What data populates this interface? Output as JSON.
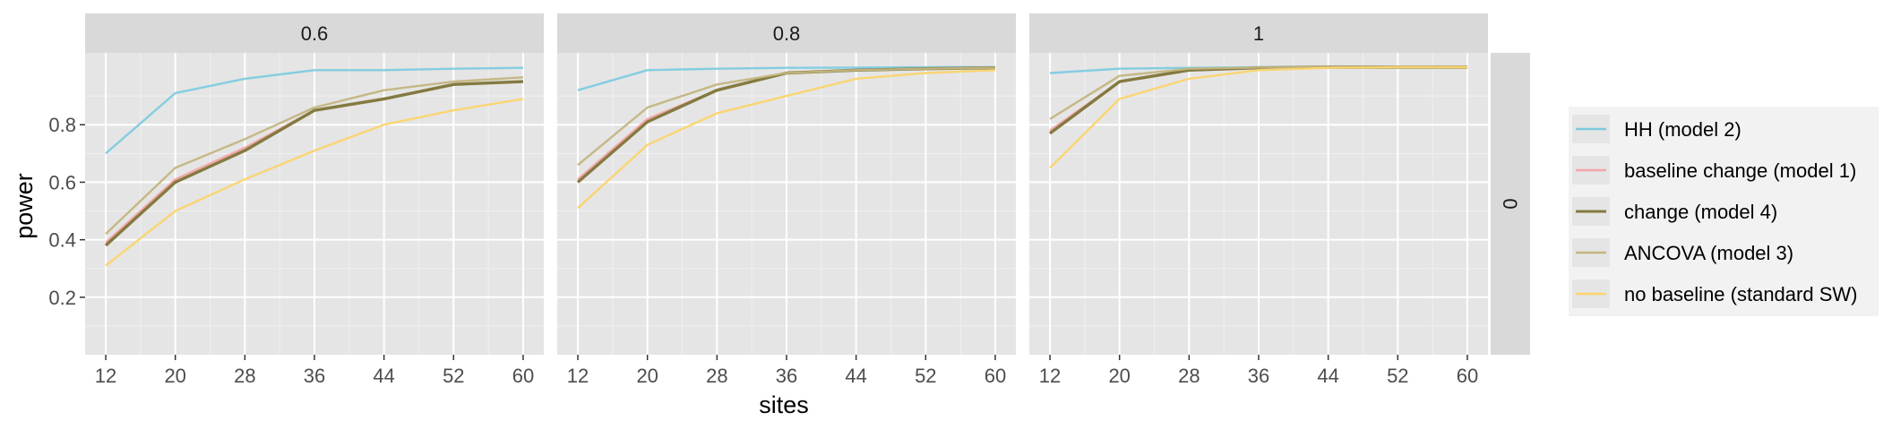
{
  "chart_data": {
    "type": "line",
    "xlabel": "sites",
    "ylabel": "power",
    "x": [
      12,
      20,
      28,
      36,
      44,
      52,
      60
    ],
    "x_ticks": [
      "12",
      "20",
      "28",
      "36",
      "44",
      "52",
      "60"
    ],
    "y_ticks": [
      "0.2",
      "0.4",
      "0.6",
      "0.8"
    ],
    "ylim": [
      0.0,
      1.05
    ],
    "grid": true,
    "legend_position": "right",
    "row_facet_label": "0",
    "series_styles": [
      {
        "name": "HH (model 2)",
        "color": "#7ecbe0"
      },
      {
        "name": "baseline change (model 1)",
        "color": "#f4a3a8"
      },
      {
        "name": "change (model 4)",
        "color": "#847a3f"
      },
      {
        "name": "ANCOVA (model 3)",
        "color": "#c3b57f"
      },
      {
        "name": "no baseline (standard SW)",
        "color": "#fbd46d"
      }
    ],
    "panels": [
      {
        "label": "0.6",
        "series": [
          {
            "name": "HH (model 2)",
            "values": [
              0.7,
              0.91,
              0.96,
              0.99,
              0.99,
              0.995,
              0.998
            ]
          },
          {
            "name": "baseline change (model 1)",
            "values": [
              0.39,
              0.61,
              0.72,
              0.85,
              0.89,
              0.94,
              0.95
            ]
          },
          {
            "name": "change (model 4)",
            "values": [
              0.38,
              0.6,
              0.71,
              0.85,
              0.89,
              0.94,
              0.95
            ]
          },
          {
            "name": "ANCOVA (model 3)",
            "values": [
              0.42,
              0.65,
              0.75,
              0.86,
              0.92,
              0.95,
              0.965
            ]
          },
          {
            "name": "no baseline (standard SW)",
            "values": [
              0.31,
              0.5,
              0.61,
              0.71,
              0.8,
              0.85,
              0.89
            ]
          }
        ]
      },
      {
        "label": "0.8",
        "series": [
          {
            "name": "HH (model 2)",
            "values": [
              0.92,
              0.99,
              0.995,
              0.998,
              0.999,
              1.0,
              1.0
            ]
          },
          {
            "name": "baseline change (model 1)",
            "values": [
              0.61,
              0.82,
              0.92,
              0.98,
              0.99,
              0.995,
              0.998
            ]
          },
          {
            "name": "change (model 4)",
            "values": [
              0.6,
              0.81,
              0.92,
              0.98,
              0.99,
              0.995,
              0.998
            ]
          },
          {
            "name": "ANCOVA (model 3)",
            "values": [
              0.66,
              0.86,
              0.94,
              0.98,
              0.99,
              0.995,
              0.998
            ]
          },
          {
            "name": "no baseline (standard SW)",
            "values": [
              0.51,
              0.73,
              0.84,
              0.9,
              0.96,
              0.98,
              0.99
            ]
          }
        ]
      },
      {
        "label": "1",
        "series": [
          {
            "name": "HH (model 2)",
            "values": [
              0.98,
              0.995,
              0.998,
              1.0,
              1.0,
              1.0,
              1.0
            ]
          },
          {
            "name": "baseline change (model 1)",
            "values": [
              0.78,
              0.95,
              0.99,
              0.998,
              1.0,
              1.0,
              1.0
            ]
          },
          {
            "name": "change (model 4)",
            "values": [
              0.77,
              0.95,
              0.99,
              0.998,
              1.0,
              1.0,
              1.0
            ]
          },
          {
            "name": "ANCOVA (model 3)",
            "values": [
              0.82,
              0.97,
              0.995,
              0.999,
              1.0,
              1.0,
              1.0
            ]
          },
          {
            "name": "no baseline (standard SW)",
            "values": [
              0.65,
              0.89,
              0.96,
              0.99,
              0.998,
              1.0,
              1.0
            ]
          }
        ]
      }
    ]
  }
}
